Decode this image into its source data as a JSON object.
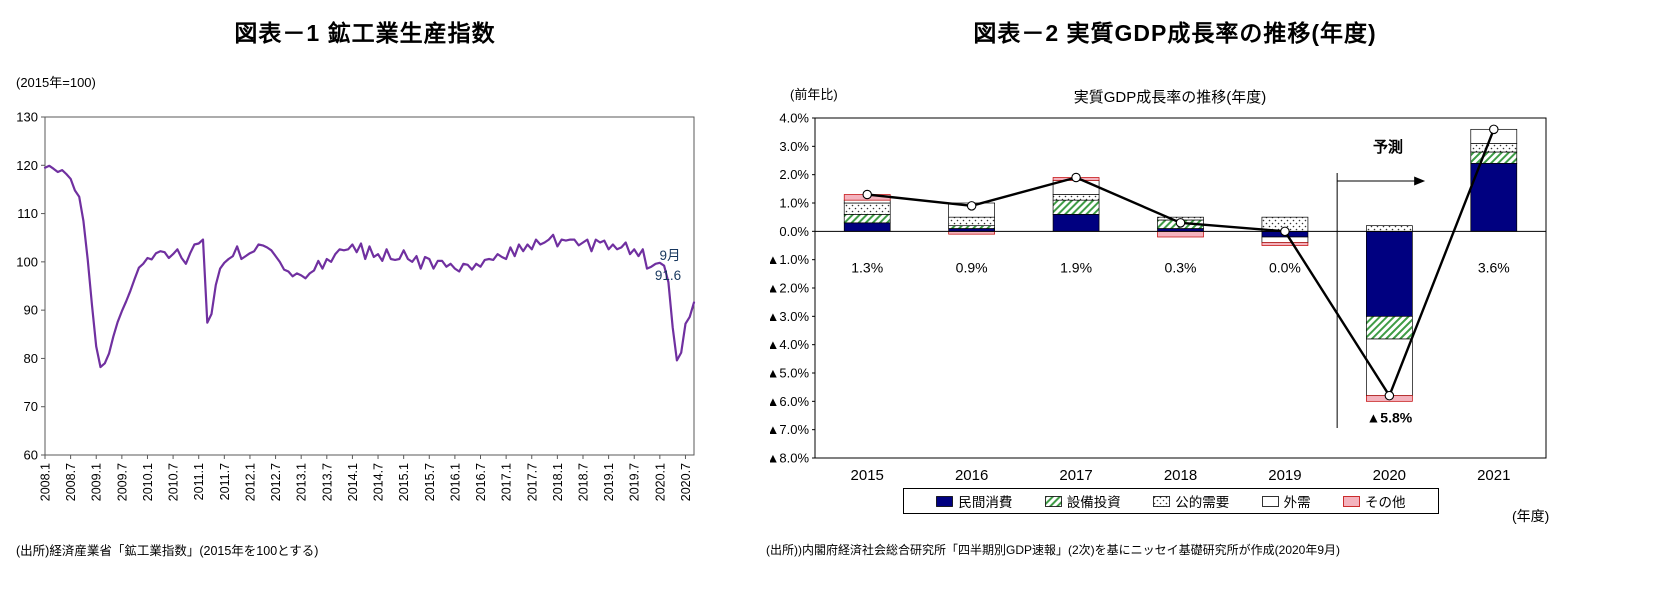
{
  "left": {
    "title": "図表－1 鉱工業生産指数",
    "y_unit": "(2015年=100)",
    "annotation_month": "9月",
    "annotation_value": "91.6",
    "source": "(出所)経済産業省「鉱工業指数」(2015年を100とする)"
  },
  "right": {
    "title": "図表－2 実質GDP成長率の推移(年度)",
    "y_unit": "(前年比)",
    "inner_title": "実質GDP成長率の推移(年度)",
    "forecast_label": "予測",
    "x_unit": "(年度)",
    "source": "(出所))内閣府経済社会総合研究所「四半期別GDP速報」(2次)を基にニッセイ基礎研究所が作成(2020年9月)"
  },
  "colors": {
    "line_purple": "#7030A0",
    "navy": "#000080",
    "hatch_green": "#3F9C46",
    "pink": "#F4B3BE",
    "pink_border": "#C00000",
    "dots": "#333333",
    "gdp_line": "#000000"
  },
  "chart_data": [
    {
      "type": "line",
      "title": "図表－1 鉱工業生産指数",
      "ylabel": "(2015年=100)",
      "ylim": [
        60,
        130
      ],
      "ytick_step": 10,
      "y_ticks": [
        60,
        70,
        80,
        90,
        100,
        110,
        120,
        130
      ],
      "color": "#7030A0",
      "x_start": "2008.1",
      "x_end": "2020.9",
      "frequency": "monthly",
      "tick_interval_months": 6,
      "x_tick_labels": [
        "2008.1",
        "2008.7",
        "2009.1",
        "2009.7",
        "2010.1",
        "2010.7",
        "2011.1",
        "2011.7",
        "2012.1",
        "2012.7",
        "2013.1",
        "2013.7",
        "2014.1",
        "2014.7",
        "2015.1",
        "2015.7",
        "2016.1",
        "2016.7",
        "2017.1",
        "2017.7",
        "2018.1",
        "2018.7",
        "2019.1",
        "2019.7",
        "2020.1",
        "2020.7"
      ],
      "values": [
        119.5,
        119.9,
        119.3,
        118.6,
        119.0,
        118.2,
        117.2,
        114.8,
        113.5,
        108.5,
        100.5,
        91.0,
        82.5,
        78.2,
        79.0,
        81.0,
        84.5,
        87.5,
        89.8,
        91.8,
        94.0,
        96.5,
        98.8,
        99.6,
        100.8,
        100.5,
        101.8,
        102.2,
        102.0,
        100.8,
        101.6,
        102.6,
        100.8,
        99.6,
        101.8,
        103.6,
        103.8,
        104.6,
        87.4,
        89.2,
        95.2,
        98.6,
        99.8,
        100.6,
        101.2,
        103.2,
        100.6,
        101.2,
        101.8,
        102.2,
        103.6,
        103.4,
        103.0,
        102.4,
        101.2,
        100.0,
        98.4,
        98.0,
        97.0,
        97.6,
        97.2,
        96.6,
        97.6,
        98.2,
        100.2,
        98.6,
        100.6,
        100.0,
        101.6,
        102.6,
        102.4,
        102.6,
        103.6,
        102.0,
        103.8,
        100.6,
        103.2,
        101.0,
        101.6,
        100.2,
        102.6,
        100.6,
        100.4,
        100.6,
        102.4,
        100.6,
        100.0,
        101.2,
        98.6,
        101.0,
        100.6,
        98.6,
        100.2,
        100.2,
        99.0,
        99.6,
        98.6,
        98.0,
        99.6,
        99.4,
        98.4,
        99.6,
        99.0,
        100.4,
        100.6,
        100.4,
        101.6,
        101.0,
        100.6,
        103.0,
        101.2,
        103.6,
        102.2,
        103.6,
        102.6,
        104.6,
        103.6,
        104.0,
        104.6,
        105.6,
        103.2,
        104.6,
        104.4,
        104.6,
        104.6,
        103.4,
        104.0,
        104.6,
        102.2,
        104.6,
        104.0,
        104.4,
        102.6,
        103.6,
        102.6,
        103.0,
        104.0,
        101.6,
        102.6,
        101.2,
        102.6,
        98.6,
        99.0,
        99.6,
        99.8,
        99.2,
        95.8,
        86.4,
        79.6,
        81.2,
        87.2,
        88.6,
        91.6
      ],
      "last_point": {
        "label": "9月",
        "value": 91.6
      }
    },
    {
      "type": "bar",
      "subtype": "stacked-bar-with-line",
      "title": "実質GDP成長率の推移(年度)",
      "ylabel": "(前年比)",
      "xlabel": "(年度)",
      "ylim": [
        -8,
        4
      ],
      "ytick_labels": [
        "4.0%",
        "3.0%",
        "2.0%",
        "1.0%",
        "0.0%",
        "▲1.0%",
        "▲2.0%",
        "▲3.0%",
        "▲4.0%",
        "▲5.0%",
        "▲6.0%",
        "▲7.0%",
        "▲8.0%"
      ],
      "categories": [
        "2015",
        "2016",
        "2017",
        "2018",
        "2019",
        "2020",
        "2021"
      ],
      "series": [
        {
          "name": "民間消費",
          "style": "navy",
          "values": [
            0.3,
            0.1,
            0.6,
            0.1,
            -0.2,
            -3.0,
            2.4
          ]
        },
        {
          "name": "設備投資",
          "style": "hatch",
          "values": [
            0.3,
            0.1,
            0.5,
            0.3,
            0.0,
            -0.8,
            0.4
          ]
        },
        {
          "name": "公的需要",
          "style": "dots",
          "values": [
            0.4,
            0.3,
            0.2,
            0.1,
            0.5,
            0.2,
            0.3
          ]
        },
        {
          "name": "外需",
          "style": "white",
          "values": [
            0.1,
            0.5,
            0.5,
            0.0,
            -0.2,
            -2.0,
            0.5
          ]
        },
        {
          "name": "その他",
          "style": "pink",
          "values": [
            0.2,
            -0.1,
            0.1,
            -0.2,
            -0.1,
            -0.2,
            0.0
          ]
        }
      ],
      "line": {
        "name": "実質GDP成長率",
        "values": [
          1.3,
          0.9,
          1.9,
          0.3,
          0.0,
          -5.8,
          3.6
        ]
      },
      "bar_labels": [
        "1.3%",
        "0.9%",
        "1.9%",
        "0.3%",
        "0.0%",
        "▲5.8%",
        "3.6%"
      ],
      "forecast_from_category": "2020",
      "legend_position": "bottom",
      "grid": false
    }
  ]
}
